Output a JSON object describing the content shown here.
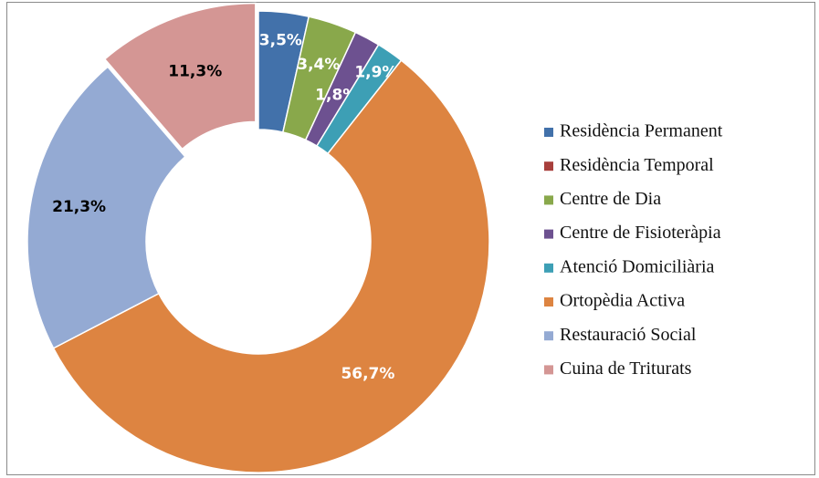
{
  "chart_data": {
    "type": "donut",
    "categories": [
      "Residència Permanent",
      "Residència Temporal",
      "Centre de Dia",
      "Centre de Fisioteràpia",
      "Atenció Domiciliària",
      "Ortopèdia Activa",
      "Restauració Social",
      "Cuina de Triturats"
    ],
    "values": [
      3.5,
      0,
      3.4,
      1.8,
      1.9,
      56.7,
      21.3,
      11.3
    ],
    "value_labels": [
      "3,5%",
      null,
      "3,4%",
      "1,8%",
      "1,9%",
      "56,7%",
      "21,3%",
      "11,3%"
    ],
    "colors": [
      "#4271aa",
      "#a83f3c",
      "#89a84b",
      "#6d5190",
      "#3d9fb5",
      "#dd8441",
      "#94aad3",
      "#d49694"
    ],
    "value_label_colors": [
      "#ffffff",
      "#ffffff",
      "#ffffff",
      "#ffffff",
      "#ffffff",
      "#ffffff",
      "#000000",
      "#000000"
    ],
    "legend": "right"
  }
}
